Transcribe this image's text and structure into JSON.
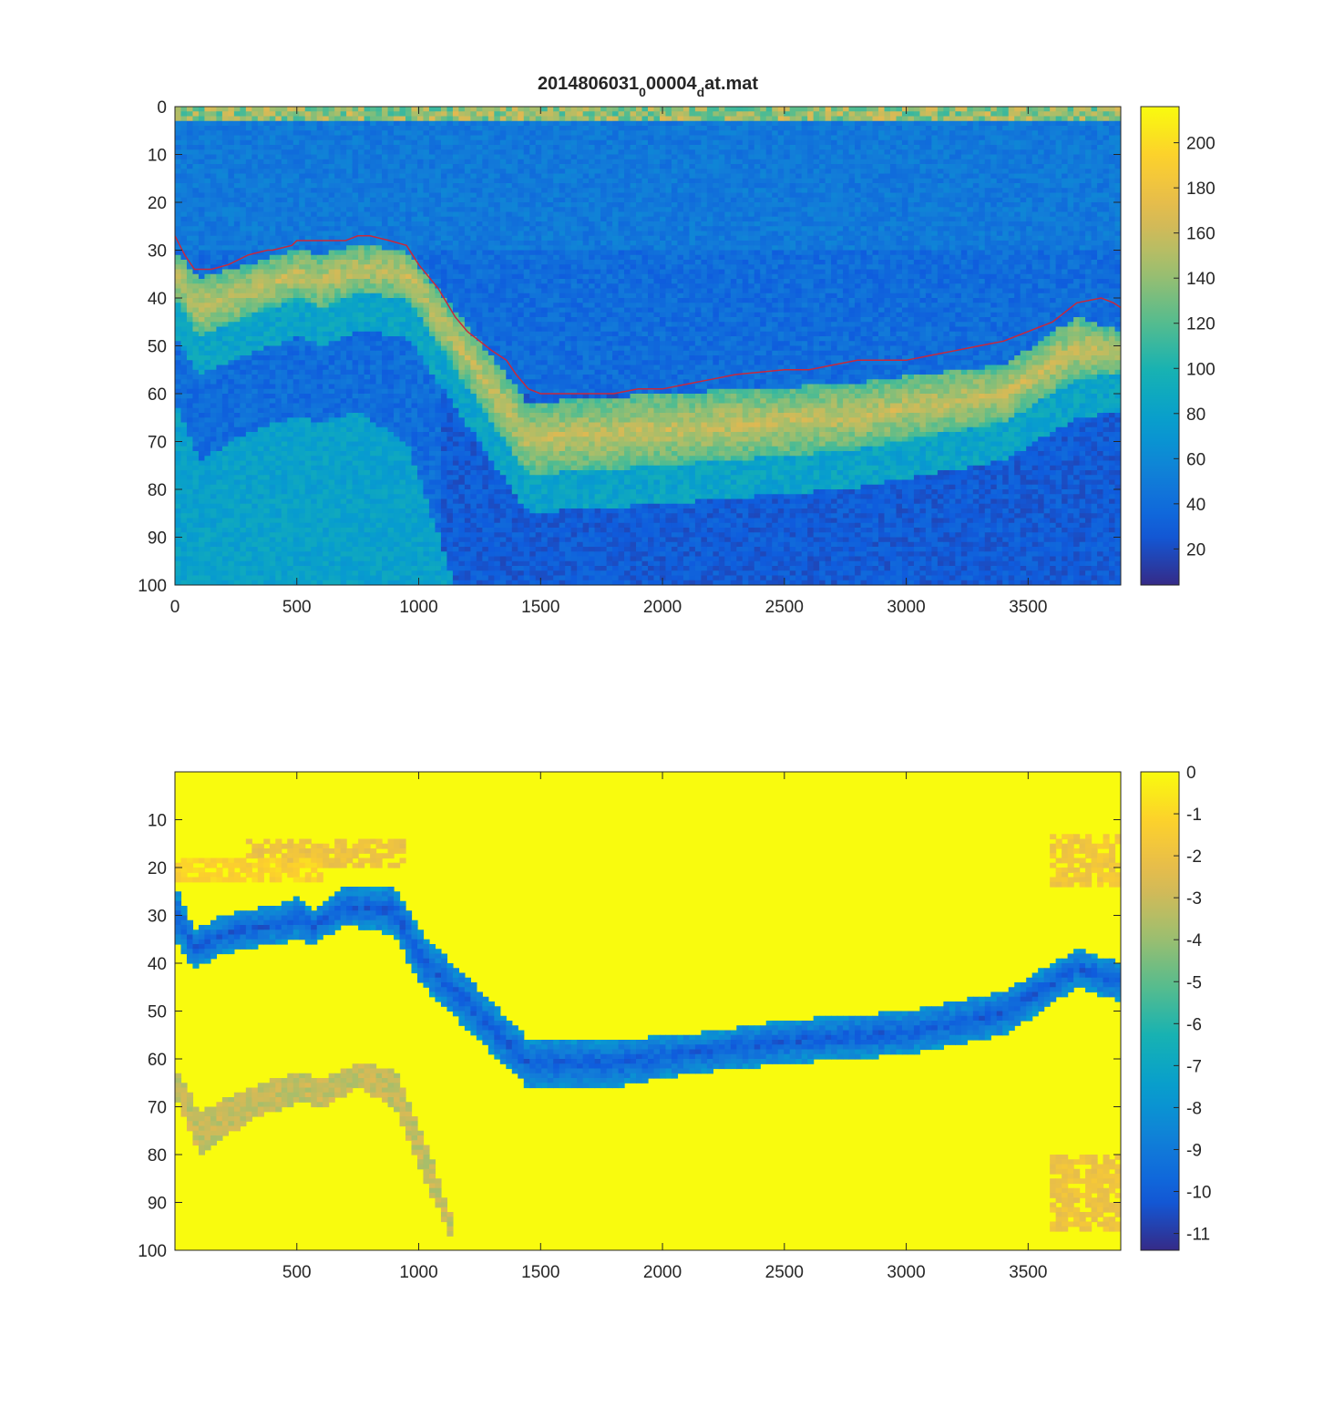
{
  "chart_data": [
    {
      "type": "heatmap",
      "title": {
        "main": "2014806031",
        "sub1": "0",
        "mid": "00004",
        "sub2": "d",
        "end": "at.mat"
      },
      "xlabel": "",
      "ylabel": "",
      "xlim": [
        0,
        3880
      ],
      "ylim": [
        0,
        100
      ],
      "y_reversed": true,
      "colormap": "parula",
      "xticks": [
        0,
        500,
        1000,
        1500,
        2000,
        2500,
        3000,
        3500
      ],
      "yticks": [
        0,
        10,
        20,
        30,
        40,
        50,
        60,
        70,
        80,
        90,
        100
      ],
      "colorbar": {
        "ticks": [
          20,
          40,
          60,
          80,
          100,
          120,
          140,
          160,
          180,
          200
        ],
        "range": [
          4,
          216
        ]
      },
      "bottom_line": {
        "color": "#c8283c",
        "x": [
          0,
          40,
          80,
          150,
          220,
          300,
          380,
          400,
          480,
          500,
          600,
          700,
          750,
          800,
          880,
          950,
          1000,
          1080,
          1150,
          1200,
          1300,
          1360,
          1400,
          1450,
          1500,
          1600,
          1800,
          1900,
          2000,
          2100,
          2200,
          2300,
          2500,
          2600,
          2700,
          2800,
          2900,
          3000,
          3100,
          3200,
          3300,
          3400,
          3450,
          3500,
          3550,
          3600,
          3650,
          3700,
          3800,
          3850,
          3880
        ],
        "y": [
          27,
          31,
          34,
          34,
          33,
          31,
          30,
          30,
          29,
          28,
          28,
          28,
          27,
          27,
          28,
          29,
          33,
          38,
          44,
          47,
          51,
          53,
          56,
          59,
          60,
          60,
          60,
          59,
          59,
          58,
          57,
          56,
          55,
          55,
          54,
          53,
          53,
          53,
          52,
          51,
          50,
          49,
          48,
          47,
          46,
          45,
          43,
          41,
          40,
          41,
          42
        ]
      },
      "features": {
        "surface_band": {
          "depth": [
            0,
            3
          ],
          "value": 110
        },
        "echo_band": {
          "x": [
            0,
            100,
            300,
            500,
            600,
            750,
            950,
            1450,
            2000,
            2750,
            3400,
            3700,
            3880
          ],
          "top": [
            30,
            36,
            33,
            30,
            31,
            29,
            30,
            62,
            60,
            58,
            54,
            44,
            47
          ],
          "bottom": [
            40,
            48,
            44,
            40,
            42,
            39,
            40,
            77,
            75,
            72,
            66,
            57,
            56
          ],
          "value": 145
        },
        "second_echo": {
          "x": [
            0,
            100,
            300,
            500,
            600,
            750,
            950,
            1150,
            1200
          ],
          "top": [
            62,
            74,
            68,
            65,
            66,
            64,
            70,
            100,
            100
          ],
          "value": 70
        }
      }
    },
    {
      "type": "heatmap",
      "title": "",
      "xlabel": "",
      "ylabel": "",
      "xlim": [
        0,
        3880
      ],
      "ylim": [
        0,
        100
      ],
      "y_reversed": true,
      "colormap": "parula",
      "xticks": [
        500,
        1000,
        1500,
        2000,
        2500,
        3000,
        3500
      ],
      "yticks": [
        10,
        20,
        30,
        40,
        50,
        60,
        70,
        80,
        90,
        100
      ],
      "colorbar": {
        "ticks": [
          0,
          -1,
          -2,
          -3,
          -4,
          -5,
          -6,
          -7,
          -8,
          -9,
          -10,
          -11
        ],
        "range": [
          -11.4,
          0
        ]
      },
      "features": {
        "bottom_band": {
          "x": [
            0,
            80,
            200,
            400,
            500,
            560,
            700,
            900,
            1000,
            1450,
            1800,
            2100,
            2500,
            3000,
            3400,
            3700,
            3880
          ],
          "top": [
            24,
            33,
            30,
            28,
            26,
            29,
            24,
            24,
            33,
            56,
            56,
            55,
            52,
            50,
            46,
            37,
            40
          ],
          "bottom": [
            35,
            41,
            38,
            36,
            35,
            36,
            32,
            34,
            44,
            66,
            66,
            63,
            61,
            59,
            55,
            45,
            48
          ],
          "value": -9.5
        },
        "second_echo_band": {
          "x": [
            0,
            100,
            300,
            500,
            600,
            750,
            900,
            1050,
            1150
          ],
          "top": [
            62,
            71,
            66,
            63,
            64,
            61,
            62,
            80,
            96
          ],
          "bottom": [
            68,
            80,
            73,
            69,
            70,
            66,
            70,
            88,
            100
          ],
          "value": -2.6
        },
        "surface_patches": [
          {
            "x": [
              280,
              950
            ],
            "y": [
              14,
              20
            ],
            "value": -2.4
          },
          {
            "x": [
              0,
              600
            ],
            "y": [
              18,
              23
            ],
            "value": -1.6
          },
          {
            "x": [
              3600,
              3880
            ],
            "y": [
              13,
              24
            ],
            "value": -2.2
          },
          {
            "x": [
              3580,
              3880
            ],
            "y": [
              80,
              96
            ],
            "value": -2.4
          }
        ]
      }
    }
  ]
}
